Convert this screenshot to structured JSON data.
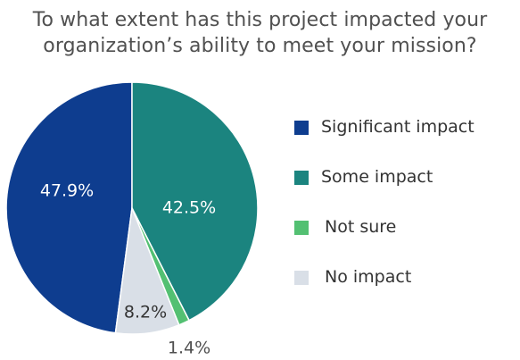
{
  "chart_data": {
    "type": "pie",
    "title": "To what extent has this project impacted your organization’s ability to meet your mission?",
    "title_lines": [
      "To what extent has this project impacted your",
      "organization’s ability to meet your mission?"
    ],
    "legend_position": "right",
    "slices": [
      {
        "label": "Significant impact",
        "value": 47.9,
        "display": "47.9%",
        "color": "#0e3d8f"
      },
      {
        "label": "Some impact",
        "value": 42.5,
        "display": "42.5%",
        "color": "#1b847f"
      },
      {
        "label": "Not sure",
        "value": 1.4,
        "display": "1.4%",
        "color": "#53c072"
      },
      {
        "label": "No impact",
        "value": 8.2,
        "display": "8.2%",
        "color": "#d9dfe7"
      }
    ]
  }
}
